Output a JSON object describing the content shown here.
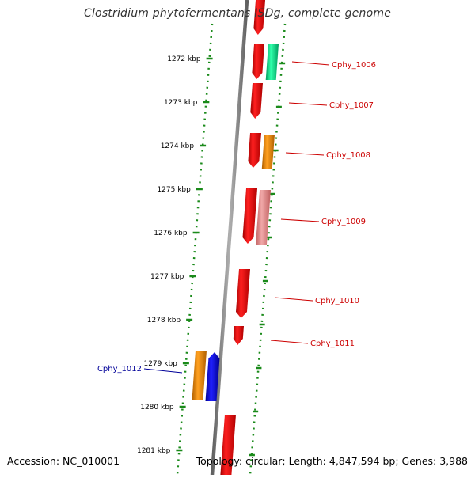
{
  "title": "Clostridium phytofermentans ISDg, complete genome",
  "accession_label": "Accession: NC_010001",
  "topology_label": "Topology: circular; Length: 4,847,594 bp; Genes: 3,988",
  "ticks": [
    "1272 kbp",
    "1273 kbp",
    "1274 kbp",
    "1275 kbp",
    "1276 kbp",
    "1277 kbp",
    "1278 kbp",
    "1279 kbp",
    "1280 kbp",
    "1281 kbp"
  ],
  "genes": [
    {
      "label": "Cphy_1006",
      "strand": "reverse",
      "color": "#e00000"
    },
    {
      "label": "Cphy_1007",
      "strand": "forward",
      "color": "#e00000"
    },
    {
      "label": "Cphy_1008",
      "strand": "forward",
      "color": "#e00000"
    },
    {
      "label": "Cphy_1009",
      "strand": "forward",
      "color": "#e00000"
    },
    {
      "label": "Cphy_1010",
      "strand": "forward",
      "color": "#e00000"
    },
    {
      "label": "Cphy_1011",
      "strand": "forward",
      "color": "#e00000"
    },
    {
      "label": "Cphy_1012",
      "strand": "reverse",
      "color": "#0000cc"
    }
  ],
  "colors": {
    "cds": "#e00000",
    "highlight": "#0000cc",
    "rna_green": "#00d98a",
    "rna_orange": "#f08c00",
    "pseudo_pink": "#e88a8a",
    "backbone": "#808080",
    "tick_green": "#1a8a1a",
    "label_red": "#cc0000"
  }
}
